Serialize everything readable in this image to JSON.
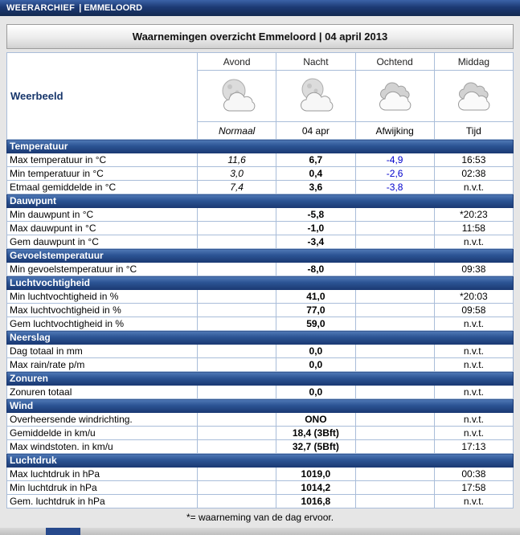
{
  "top_bar": {
    "site_title": "WEERARCHIEF",
    "site_separator_and_location": "| EMMELOORD"
  },
  "title_bar": {
    "title": "Waarnemingen overzicht Emmeloord | 04 april 2013"
  },
  "table": {
    "row_group_label": "Weerbeeld",
    "period_headers": [
      "Avond",
      "Nacht",
      "Ochtend",
      "Middag"
    ],
    "icons": [
      "moon-behind-clouds-icon",
      "moon-behind-clouds-icon",
      "cloudy-icon",
      "cloudy-icon"
    ],
    "value_headers": [
      "Normaal",
      "04 apr",
      "Afwijking",
      "Tijd"
    ],
    "sections": [
      {
        "title": "Temperatuur",
        "rows": [
          {
            "label": "Max temperatuur in °C",
            "normaal": "11,6",
            "value": "6,7",
            "afwijking": "-4,9",
            "tijd": "16:53"
          },
          {
            "label": "Min temperatuur in °C",
            "normaal": "3,0",
            "value": "0,4",
            "afwijking": "-2,6",
            "tijd": "02:38"
          },
          {
            "label": "Etmaal gemiddelde in °C",
            "normaal": "7,4",
            "value": "3,6",
            "afwijking": "-3,8",
            "tijd": "n.v.t."
          }
        ]
      },
      {
        "title": "Dauwpunt",
        "rows": [
          {
            "label": "Min dauwpunt in °C",
            "normaal": "",
            "value": "-5,8",
            "afwijking": "",
            "tijd": "*20:23"
          },
          {
            "label": "Max dauwpunt in °C",
            "normaal": "",
            "value": "-1,0",
            "afwijking": "",
            "tijd": "11:58"
          },
          {
            "label": "Gem dauwpunt in °C",
            "normaal": "",
            "value": "-3,4",
            "afwijking": "",
            "tijd": "n.v.t."
          }
        ]
      },
      {
        "title": "Gevoelstemperatuur",
        "rows": [
          {
            "label": "Min gevoelstemperatuur in °C",
            "normaal": "",
            "value": "-8,0",
            "afwijking": "",
            "tijd": "09:38"
          }
        ]
      },
      {
        "title": "Luchtvochtigheid",
        "rows": [
          {
            "label": "Min luchtvochtigheid in %",
            "normaal": "",
            "value": "41,0",
            "afwijking": "",
            "tijd": "*20:03"
          },
          {
            "label": "Max luchtvochtigheid in %",
            "normaal": "",
            "value": "77,0",
            "afwijking": "",
            "tijd": "09:58"
          },
          {
            "label": "Gem luchtvochtigheid in %",
            "normaal": "",
            "value": "59,0",
            "afwijking": "",
            "tijd": "n.v.t."
          }
        ]
      },
      {
        "title": "Neerslag",
        "rows": [
          {
            "label": "Dag totaal in mm",
            "normaal": "",
            "value": "0,0",
            "afwijking": "",
            "tijd": "n.v.t."
          },
          {
            "label": "Max rain/rate p/m",
            "normaal": "",
            "value": "0,0",
            "afwijking": "",
            "tijd": "n.v.t."
          }
        ]
      },
      {
        "title": "Zonuren",
        "rows": [
          {
            "label": "Zonuren totaal",
            "normaal": "",
            "value": "0,0",
            "afwijking": "",
            "tijd": "n.v.t."
          }
        ]
      },
      {
        "title": "Wind",
        "rows": [
          {
            "label": "Overheersende windrichting.",
            "normaal": "",
            "value": "ONO",
            "afwijking": "",
            "tijd": "n.v.t."
          },
          {
            "label": "Gemiddelde in km/u",
            "normaal": "",
            "value": "18,4 (3Bft)",
            "afwijking": "",
            "tijd": "n.v.t."
          },
          {
            "label": "Max windstoten. in km/u",
            "normaal": "",
            "value": "32,7 (5Bft)",
            "afwijking": "",
            "tijd": "17:13"
          }
        ]
      },
      {
        "title": "Luchtdruk",
        "rows": [
          {
            "label": "Max luchtdruk in hPa",
            "normaal": "",
            "value": "1019,0",
            "afwijking": "",
            "tijd": "00:38"
          },
          {
            "label": "Min luchtdruk in hPa",
            "normaal": "",
            "value": "1014,2",
            "afwijking": "",
            "tijd": "17:58"
          },
          {
            "label": "Gem. luchtdruk in hPa",
            "normaal": "",
            "value": "1016,8",
            "afwijking": "",
            "tijd": "n.v.t."
          }
        ]
      }
    ]
  },
  "footnote": "*= waarneming van de dag ervoor.",
  "colors": {
    "header_bar_blue": "#1c3a74",
    "section_header_blue": "#2c5494",
    "deviation_text_blue": "#0000cc",
    "grid_line_blue": "#a9bdd9"
  }
}
